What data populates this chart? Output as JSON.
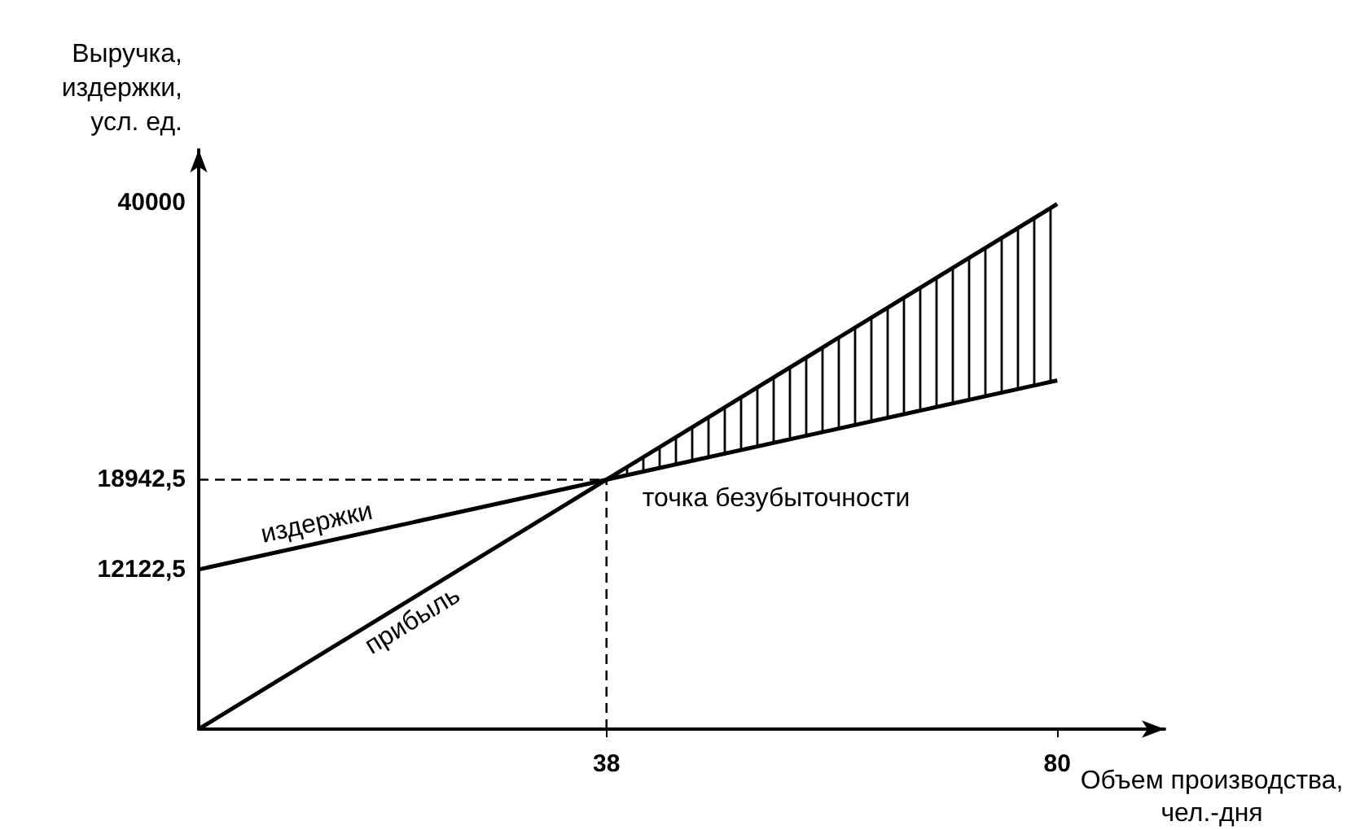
{
  "chart_data": {
    "type": "line",
    "xlabel": "Объем производства,\nчел.-дня",
    "ylabel": "Выручка,\nиздержки,\nусл. ед.",
    "xlim": [
      0,
      90
    ],
    "ylim": [
      0,
      44000
    ],
    "xticks": [
      38,
      80
    ],
    "yticks": [
      {
        "value": 12122.5,
        "label": "12122,5"
      },
      {
        "value": 18942.5,
        "label": "18942,5"
      },
      40000
    ],
    "series": [
      {
        "name": "издержки",
        "color": "#000000",
        "x": [
          0,
          38,
          80
        ],
        "values": [
          12122.5,
          18942.5,
          26480
        ]
      },
      {
        "name": "прибыль",
        "color": "#000000",
        "x": [
          0,
          38,
          80
        ],
        "values": [
          0,
          18942.5,
          39880
        ],
        "lower": [
          null,
          18942.5,
          26480
        ],
        "upper": [
          null,
          18942.5,
          39880
        ]
      }
    ],
    "ref_lines": [
      {
        "axis": "x",
        "value": 38,
        "line_style": "dashed"
      },
      {
        "axis": "y",
        "value": 18942.5,
        "line_style": "dashed"
      }
    ],
    "annotations": [
      {
        "text": "точка безубыточности",
        "x": 38,
        "y": 18942.5
      }
    ],
    "marker": "none",
    "line_style": "solid",
    "grid": false,
    "legend": false
  }
}
